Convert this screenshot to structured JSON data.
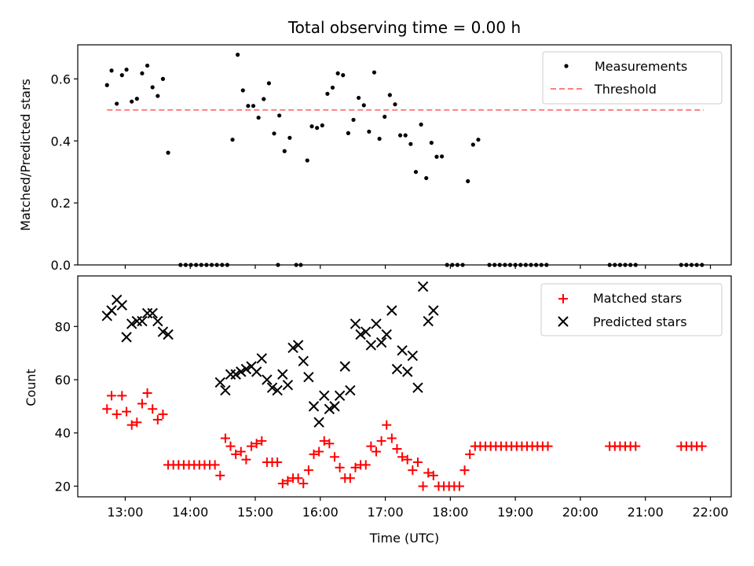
{
  "chart_data": [
    {
      "type": "scatter",
      "title": "Total observing time = 0.00 h",
      "xlabel": "",
      "ylabel": "Matched/Predicted stars",
      "xlim": [
        12.27,
        22.32
      ],
      "ylim": [
        0.0,
        0.71
      ],
      "yticks": [
        0.0,
        0.2,
        0.4,
        0.6
      ],
      "ytick_labels": [
        "0.0",
        "0.2",
        "0.4",
        "0.6"
      ],
      "xticks": [
        13,
        14,
        15,
        16,
        17,
        18,
        19,
        20,
        21,
        22
      ],
      "legend": {
        "position": "upper right",
        "entries": [
          "Measurements",
          "Threshold"
        ]
      },
      "threshold": {
        "name": "Threshold",
        "y": 0.5,
        "x": [
          12.72,
          21.9
        ],
        "color": "#ff7f7f"
      },
      "series": [
        {
          "name": "Measurements",
          "color": "#000000",
          "points": [
            [
              12.72,
              0.58
            ],
            [
              12.79,
              0.627
            ],
            [
              12.87,
              0.52
            ],
            [
              12.95,
              0.612
            ],
            [
              13.02,
              0.63
            ],
            [
              13.1,
              0.527
            ],
            [
              13.18,
              0.536
            ],
            [
              13.26,
              0.618
            ],
            [
              13.34,
              0.643
            ],
            [
              13.42,
              0.573
            ],
            [
              13.5,
              0.545
            ],
            [
              13.58,
              0.6
            ],
            [
              13.66,
              0.362
            ],
            [
              13.85,
              0.0
            ],
            [
              13.93,
              0.0
            ],
            [
              14.01,
              0.0
            ],
            [
              14.09,
              0.0
            ],
            [
              14.17,
              0.0
            ],
            [
              14.25,
              0.0
            ],
            [
              14.33,
              0.0
            ],
            [
              14.41,
              0.0
            ],
            [
              14.49,
              0.0
            ],
            [
              14.57,
              0.0
            ],
            [
              14.65,
              0.404
            ],
            [
              14.73,
              0.678
            ],
            [
              14.81,
              0.563
            ],
            [
              14.89,
              0.513
            ],
            [
              14.97,
              0.513
            ],
            [
              15.05,
              0.475
            ],
            [
              15.13,
              0.535
            ],
            [
              15.21,
              0.586
            ],
            [
              15.29,
              0.424
            ],
            [
              15.37,
              0.482
            ],
            [
              15.35,
              0.0
            ],
            [
              15.45,
              0.367
            ],
            [
              15.53,
              0.41
            ],
            [
              15.63,
              0.0
            ],
            [
              15.7,
              0.0
            ],
            [
              15.8,
              0.337
            ],
            [
              15.87,
              0.447
            ],
            [
              15.95,
              0.442
            ],
            [
              16.03,
              0.45
            ],
            [
              16.11,
              0.552
            ],
            [
              16.19,
              0.572
            ],
            [
              16.27,
              0.618
            ],
            [
              16.35,
              0.612
            ],
            [
              16.43,
              0.425
            ],
            [
              16.51,
              0.468
            ],
            [
              16.59,
              0.539
            ],
            [
              16.67,
              0.515
            ],
            [
              16.75,
              0.43
            ],
            [
              16.83,
              0.621
            ],
            [
              16.91,
              0.407
            ],
            [
              16.99,
              0.478
            ],
            [
              17.07,
              0.548
            ],
            [
              17.15,
              0.518
            ],
            [
              17.23,
              0.418
            ],
            [
              17.31,
              0.418
            ],
            [
              17.39,
              0.39
            ],
            [
              17.47,
              0.3
            ],
            [
              17.55,
              0.453
            ],
            [
              17.63,
              0.28
            ],
            [
              17.71,
              0.394
            ],
            [
              17.79,
              0.349
            ],
            [
              17.87,
              0.35
            ],
            [
              17.95,
              0.0
            ],
            [
              18.03,
              0.0
            ],
            [
              18.11,
              0.0
            ],
            [
              18.19,
              0.0
            ],
            [
              18.27,
              0.27
            ],
            [
              18.35,
              0.388
            ],
            [
              18.43,
              0.404
            ],
            [
              18.6,
              0.0
            ],
            [
              18.68,
              0.0
            ],
            [
              18.76,
              0.0
            ],
            [
              18.84,
              0.0
            ],
            [
              18.92,
              0.0
            ],
            [
              19.0,
              0.0
            ],
            [
              19.08,
              0.0
            ],
            [
              19.16,
              0.0
            ],
            [
              19.24,
              0.0
            ],
            [
              19.32,
              0.0
            ],
            [
              19.4,
              0.0
            ],
            [
              19.48,
              0.0
            ],
            [
              20.45,
              0.0
            ],
            [
              20.53,
              0.0
            ],
            [
              20.61,
              0.0
            ],
            [
              20.69,
              0.0
            ],
            [
              20.77,
              0.0
            ],
            [
              20.85,
              0.0
            ],
            [
              21.55,
              0.0
            ],
            [
              21.63,
              0.0
            ],
            [
              21.71,
              0.0
            ],
            [
              21.79,
              0.0
            ],
            [
              21.87,
              0.0
            ]
          ]
        }
      ]
    },
    {
      "type": "scatter",
      "title": "",
      "xlabel": "Time (UTC)",
      "ylabel": "Count",
      "xlim": [
        12.27,
        22.32
      ],
      "ylim": [
        16.0,
        99.0
      ],
      "yticks": [
        20,
        40,
        60,
        80
      ],
      "ytick_labels": [
        "20",
        "40",
        "60",
        "80"
      ],
      "xticks": [
        13,
        14,
        15,
        16,
        17,
        18,
        19,
        20,
        21,
        22
      ],
      "xtick_labels": [
        "13:00",
        "14:00",
        "15:00",
        "16:00",
        "17:00",
        "18:00",
        "19:00",
        "20:00",
        "21:00",
        "22:00"
      ],
      "legend": {
        "position": "upper right",
        "entries": [
          "Matched stars",
          "Predicted stars"
        ]
      },
      "series": [
        {
          "name": "Matched stars",
          "marker": "+",
          "color": "#ff0000",
          "points": [
            [
              12.72,
              49
            ],
            [
              12.79,
              54
            ],
            [
              12.87,
              47
            ],
            [
              12.95,
              54
            ],
            [
              13.02,
              48
            ],
            [
              13.1,
              43
            ],
            [
              13.18,
              44
            ],
            [
              13.26,
              51
            ],
            [
              13.34,
              55
            ],
            [
              13.42,
              49
            ],
            [
              13.5,
              45
            ],
            [
              13.58,
              47
            ],
            [
              13.66,
              28
            ],
            [
              13.74,
              28
            ],
            [
              13.82,
              28
            ],
            [
              13.9,
              28
            ],
            [
              13.98,
              28
            ],
            [
              14.06,
              28
            ],
            [
              14.14,
              28
            ],
            [
              14.22,
              28
            ],
            [
              14.3,
              28
            ],
            [
              14.38,
              28
            ],
            [
              14.46,
              24
            ],
            [
              14.54,
              38
            ],
            [
              14.62,
              35
            ],
            [
              14.7,
              32
            ],
            [
              14.78,
              33
            ],
            [
              14.86,
              30
            ],
            [
              14.94,
              35
            ],
            [
              15.02,
              36
            ],
            [
              15.1,
              37
            ],
            [
              15.18,
              29
            ],
            [
              15.26,
              29
            ],
            [
              15.34,
              29
            ],
            [
              15.42,
              21
            ],
            [
              15.5,
              22
            ],
            [
              15.58,
              23
            ],
            [
              15.66,
              23
            ],
            [
              15.74,
              21
            ],
            [
              15.82,
              26
            ],
            [
              15.9,
              32
            ],
            [
              15.98,
              33
            ],
            [
              16.06,
              37
            ],
            [
              16.14,
              36
            ],
            [
              16.22,
              31
            ],
            [
              16.3,
              27
            ],
            [
              16.38,
              23
            ],
            [
              16.46,
              23
            ],
            [
              16.54,
              27
            ],
            [
              16.62,
              28
            ],
            [
              16.7,
              28
            ],
            [
              16.78,
              35
            ],
            [
              16.86,
              33
            ],
            [
              16.94,
              37
            ],
            [
              17.02,
              43
            ],
            [
              17.1,
              38
            ],
            [
              17.18,
              34
            ],
            [
              17.26,
              31
            ],
            [
              17.34,
              30
            ],
            [
              17.42,
              26
            ],
            [
              17.5,
              29
            ],
            [
              17.58,
              20
            ],
            [
              17.66,
              25
            ],
            [
              17.74,
              24
            ],
            [
              17.82,
              20
            ],
            [
              17.9,
              20
            ],
            [
              17.98,
              20
            ],
            [
              18.06,
              20
            ],
            [
              18.14,
              20
            ],
            [
              18.22,
              26
            ],
            [
              18.3,
              32
            ],
            [
              18.38,
              35
            ],
            [
              18.46,
              35
            ],
            [
              18.54,
              35
            ],
            [
              18.62,
              35
            ],
            [
              18.7,
              35
            ],
            [
              18.78,
              35
            ],
            [
              18.86,
              35
            ],
            [
              18.94,
              35
            ],
            [
              19.02,
              35
            ],
            [
              19.1,
              35
            ],
            [
              19.18,
              35
            ],
            [
              19.26,
              35
            ],
            [
              19.34,
              35
            ],
            [
              19.42,
              35
            ],
            [
              19.5,
              35
            ],
            [
              20.45,
              35
            ],
            [
              20.53,
              35
            ],
            [
              20.61,
              35
            ],
            [
              20.69,
              35
            ],
            [
              20.77,
              35
            ],
            [
              20.85,
              35
            ],
            [
              21.55,
              35
            ],
            [
              21.63,
              35
            ],
            [
              21.71,
              35
            ],
            [
              21.79,
              35
            ],
            [
              21.87,
              35
            ]
          ]
        },
        {
          "name": "Predicted stars",
          "marker": "x",
          "color": "#000000",
          "points": [
            [
              12.72,
              84
            ],
            [
              12.79,
              86
            ],
            [
              12.87,
              90
            ],
            [
              12.95,
              88
            ],
            [
              13.02,
              76
            ],
            [
              13.1,
              81
            ],
            [
              13.18,
              82
            ],
            [
              13.26,
              82
            ],
            [
              13.34,
              85
            ],
            [
              13.42,
              85
            ],
            [
              13.5,
              82
            ],
            [
              13.58,
              78
            ],
            [
              13.66,
              77
            ],
            [
              14.46,
              59
            ],
            [
              14.54,
              56
            ],
            [
              14.62,
              62
            ],
            [
              14.7,
              62
            ],
            [
              14.78,
              63
            ],
            [
              14.86,
              64
            ],
            [
              14.94,
              65
            ],
            [
              15.02,
              63
            ],
            [
              15.1,
              68
            ],
            [
              15.18,
              60
            ],
            [
              15.26,
              57
            ],
            [
              15.34,
              56
            ],
            [
              15.42,
              62
            ],
            [
              15.5,
              58
            ],
            [
              15.58,
              72
            ],
            [
              15.66,
              73
            ],
            [
              15.74,
              67
            ],
            [
              15.82,
              61
            ],
            [
              15.9,
              50
            ],
            [
              15.98,
              44
            ],
            [
              16.06,
              54
            ],
            [
              16.14,
              49
            ],
            [
              16.22,
              50
            ],
            [
              16.3,
              54
            ],
            [
              16.38,
              65
            ],
            [
              16.46,
              56
            ],
            [
              16.54,
              81
            ],
            [
              16.62,
              77
            ],
            [
              16.7,
              78
            ],
            [
              16.78,
              73
            ],
            [
              16.86,
              81
            ],
            [
              16.94,
              74
            ],
            [
              17.02,
              77
            ],
            [
              17.1,
              86
            ],
            [
              17.18,
              64
            ],
            [
              17.26,
              71
            ],
            [
              17.34,
              63
            ],
            [
              17.42,
              69
            ],
            [
              17.5,
              57
            ],
            [
              17.58,
              95
            ],
            [
              17.66,
              82
            ],
            [
              17.74,
              86
            ]
          ]
        }
      ]
    }
  ]
}
